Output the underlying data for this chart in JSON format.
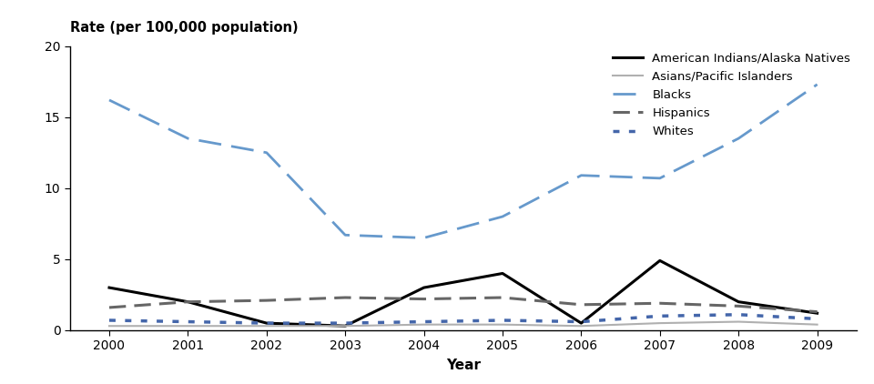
{
  "years": [
    2000,
    2001,
    2002,
    2003,
    2004,
    2005,
    2006,
    2007,
    2008,
    2009
  ],
  "series": {
    "American Indians/Alaska Natives": [
      3.0,
      2.0,
      0.5,
      0.3,
      3.0,
      4.0,
      0.5,
      4.9,
      2.0,
      1.2
    ],
    "Asians/Pacific Islanders": [
      0.3,
      0.3,
      0.3,
      0.3,
      0.4,
      0.4,
      0.3,
      0.5,
      0.6,
      0.4
    ],
    "Blacks": [
      16.2,
      13.5,
      12.5,
      6.7,
      6.5,
      8.0,
      10.9,
      10.7,
      13.5,
      17.3
    ],
    "Hispanics": [
      1.6,
      2.0,
      2.1,
      2.3,
      2.2,
      2.3,
      1.8,
      1.9,
      1.7,
      1.3
    ],
    "Whites": [
      0.7,
      0.6,
      0.5,
      0.5,
      0.6,
      0.7,
      0.6,
      1.0,
      1.1,
      0.8
    ]
  },
  "line_styles": {
    "American Indians/Alaska Natives": {
      "color": "#000000",
      "linestyle": "-",
      "linewidth": 2.2,
      "dashes": null
    },
    "Asians/Pacific Islanders": {
      "color": "#b0b0b0",
      "linestyle": "-",
      "linewidth": 1.5,
      "dashes": null
    },
    "Blacks": {
      "color": "#6699cc",
      "linestyle": "--",
      "linewidth": 2.0,
      "dashes": [
        9,
        4
      ]
    },
    "Hispanics": {
      "color": "#666666",
      "linestyle": "--",
      "linewidth": 2.2,
      "dashes": [
        6,
        3
      ]
    },
    "Whites": {
      "color": "#4466aa",
      "linestyle": ":",
      "linewidth": 2.5,
      "dashes": [
        2,
        3
      ]
    }
  },
  "legend_order": [
    "American Indians/Alaska Natives",
    "Asians/Pacific Islanders",
    "Blacks",
    "Hispanics",
    "Whites"
  ],
  "ylabel": "Rate (per 100,000 population)",
  "xlabel": "Year",
  "ylim": [
    0,
    20
  ],
  "yticks": [
    0,
    5,
    10,
    15,
    20
  ],
  "xlim": [
    1999.5,
    2009.5
  ],
  "background_color": "#ffffff"
}
